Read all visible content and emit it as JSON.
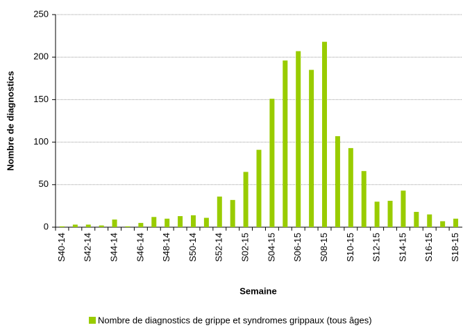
{
  "chart_data": {
    "type": "bar",
    "categories": [
      "S40-14",
      null,
      "S42-14",
      null,
      "S44-14",
      null,
      "S46-14",
      null,
      "S48-14",
      null,
      "S50-14",
      null,
      "S52-14",
      null,
      "S02-15",
      null,
      "S04-15",
      null,
      "S06-15",
      null,
      "S08-15",
      null,
      "S10-15",
      null,
      "S12-15",
      null,
      "S14-15",
      null,
      "S16-15",
      null,
      "S18-15"
    ],
    "series": [
      {
        "name": "Nombre de diagnostics de grippe et syndromes grippaux (tous âges)",
        "color": "#99cc00",
        "values": [
          1,
          3,
          3,
          2,
          9,
          1,
          5,
          12,
          10,
          13,
          14,
          11,
          36,
          32,
          65,
          91,
          151,
          196,
          207,
          185,
          218,
          107,
          93,
          66,
          30,
          31,
          43,
          18,
          15,
          7,
          10
        ]
      }
    ],
    "x_label": "Semaine",
    "y_label": "Nombre de diagnostics",
    "ylim": [
      0,
      250
    ],
    "yticks": [
      0,
      50,
      100,
      150,
      200,
      250
    ],
    "grid": true
  }
}
